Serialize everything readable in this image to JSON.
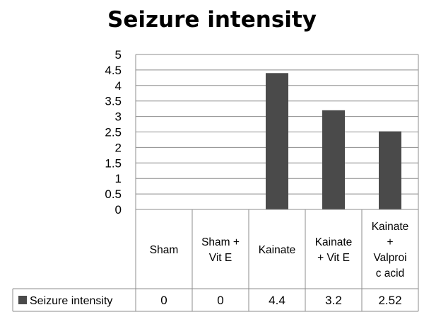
{
  "chart_data": {
    "type": "bar",
    "title": "Seizure intensity",
    "categories": [
      [
        "Sham"
      ],
      [
        "Sham +",
        "Vit E"
      ],
      [
        "Kainate"
      ],
      [
        "Kainate",
        "+ Vit E"
      ],
      [
        "Kainate",
        "+",
        "Valproi",
        "c acid"
      ]
    ],
    "series": [
      {
        "name": "Seizure intensity",
        "values": [
          0,
          0,
          4.4,
          3.2,
          2.52
        ],
        "value_labels": [
          "0",
          "0",
          "4.4",
          "3.2",
          "2.52"
        ]
      }
    ],
    "yticks": [
      "0",
      "0.5",
      "1",
      "1.5",
      "2",
      "2.5",
      "3",
      "3.5",
      "4",
      "4.5",
      "5"
    ],
    "ylim": [
      0,
      5
    ],
    "xlabel": "",
    "ylabel": "",
    "grid": true,
    "legend_placement": "data-table-left",
    "bar_color": "#4a4a4a",
    "grid_color": "#8c8c8c"
  }
}
